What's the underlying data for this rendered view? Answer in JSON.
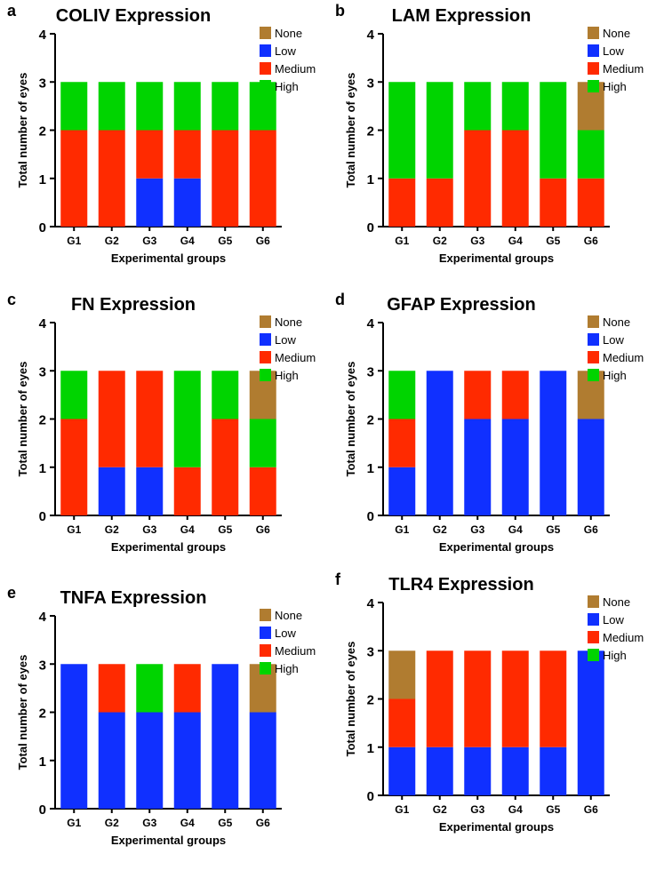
{
  "colors": {
    "None": "#b07c30",
    "Low": "#1030ff",
    "Medium": "#ff2a00",
    "High": "#00d400"
  },
  "chart_data": [
    {
      "panel": "a",
      "type": "bar",
      "stacked": true,
      "title": "COLIV Expression",
      "xlabel": "Experimental groups",
      "ylabel": "Total number of eyes",
      "ylim": [
        0,
        4
      ],
      "yticks": [
        "0",
        "1",
        "2",
        "3",
        "4"
      ],
      "categories": [
        "G1",
        "G2",
        "G3",
        "G4",
        "G5",
        "G6"
      ],
      "legend": [
        "None",
        "Low",
        "Medium",
        "High"
      ],
      "legend_position": "top-right",
      "series": [
        {
          "name": "Low",
          "values": [
            0,
            0,
            1,
            1,
            0,
            0
          ]
        },
        {
          "name": "Medium",
          "values": [
            2,
            2,
            1,
            1,
            2,
            2
          ]
        },
        {
          "name": "High",
          "values": [
            1,
            1,
            1,
            1,
            1,
            1
          ]
        },
        {
          "name": "None",
          "values": [
            0,
            0,
            0,
            0,
            0,
            0
          ]
        }
      ]
    },
    {
      "panel": "b",
      "type": "bar",
      "stacked": true,
      "title": "LAM Expression",
      "xlabel": "Experimental groups",
      "ylabel": "Total number of eyes",
      "ylim": [
        0,
        4
      ],
      "yticks": [
        "0",
        "1",
        "2",
        "3",
        "4"
      ],
      "categories": [
        "G1",
        "G2",
        "G3",
        "G4",
        "G5",
        "G6"
      ],
      "legend": [
        "None",
        "Low",
        "Medium",
        "High"
      ],
      "legend_position": "top-right",
      "series": [
        {
          "name": "Low",
          "values": [
            0,
            0,
            0,
            0,
            0,
            0
          ]
        },
        {
          "name": "Medium",
          "values": [
            1,
            1,
            2,
            2,
            1,
            1
          ]
        },
        {
          "name": "High",
          "values": [
            2,
            2,
            1,
            1,
            2,
            1
          ]
        },
        {
          "name": "None",
          "values": [
            0,
            0,
            0,
            0,
            0,
            1
          ]
        }
      ]
    },
    {
      "panel": "c",
      "type": "bar",
      "stacked": true,
      "title": "FN Expression",
      "xlabel": "Experimental groups",
      "ylabel": "Total number of eyes",
      "ylim": [
        0,
        4
      ],
      "yticks": [
        "0",
        "1",
        "2",
        "3",
        "4"
      ],
      "categories": [
        "G1",
        "G2",
        "G3",
        "G4",
        "G5",
        "G6"
      ],
      "legend": [
        "None",
        "Low",
        "Medium",
        "High"
      ],
      "legend_position": "top-right",
      "series": [
        {
          "name": "Low",
          "values": [
            0,
            1,
            1,
            0,
            0,
            0
          ]
        },
        {
          "name": "Medium",
          "values": [
            2,
            2,
            2,
            1,
            2,
            1
          ]
        },
        {
          "name": "High",
          "values": [
            1,
            0,
            0,
            2,
            1,
            1
          ]
        },
        {
          "name": "None",
          "values": [
            0,
            0,
            0,
            0,
            0,
            1
          ]
        }
      ]
    },
    {
      "panel": "d",
      "type": "bar",
      "stacked": true,
      "title": "GFAP Expression",
      "xlabel": "Experimental groups",
      "ylabel": "Total number of eyes",
      "ylim": [
        0,
        4
      ],
      "yticks": [
        "0",
        "1",
        "2",
        "3",
        "4"
      ],
      "categories": [
        "G1",
        "G2",
        "G3",
        "G4",
        "G5",
        "G6"
      ],
      "legend": [
        "None",
        "Low",
        "Medium",
        "High"
      ],
      "legend_position": "top-right",
      "series": [
        {
          "name": "Low",
          "values": [
            1,
            3,
            2,
            2,
            3,
            2
          ]
        },
        {
          "name": "Medium",
          "values": [
            1,
            0,
            1,
            1,
            0,
            0
          ]
        },
        {
          "name": "High",
          "values": [
            1,
            0,
            0,
            0,
            0,
            0
          ]
        },
        {
          "name": "None",
          "values": [
            0,
            0,
            0,
            0,
            0,
            1
          ]
        }
      ]
    },
    {
      "panel": "e",
      "type": "bar",
      "stacked": true,
      "title": "TNFA Expression",
      "xlabel": "Experimental groups",
      "ylabel": "Total number of eyes",
      "ylim": [
        0,
        4
      ],
      "yticks": [
        "0",
        "1",
        "2",
        "3",
        "4"
      ],
      "categories": [
        "G1",
        "G2",
        "G3",
        "G4",
        "G5",
        "G6"
      ],
      "legend": [
        "None",
        "Low",
        "Medium",
        "High"
      ],
      "legend_position": "top-right",
      "series": [
        {
          "name": "Low",
          "values": [
            3,
            2,
            2,
            2,
            3,
            2
          ]
        },
        {
          "name": "Medium",
          "values": [
            0,
            1,
            0,
            1,
            0,
            0
          ]
        },
        {
          "name": "High",
          "values": [
            0,
            0,
            1,
            0,
            0,
            0
          ]
        },
        {
          "name": "None",
          "values": [
            0,
            0,
            0,
            0,
            0,
            1
          ]
        }
      ]
    },
    {
      "panel": "f",
      "type": "bar",
      "stacked": true,
      "title": "TLR4 Expression",
      "xlabel": "Experimental groups",
      "ylabel": "Total number of eyes",
      "ylim": [
        0,
        4
      ],
      "yticks": [
        "0",
        "1",
        "2",
        "3",
        "4"
      ],
      "categories": [
        "G1",
        "G2",
        "G3",
        "G4",
        "G5",
        "G6"
      ],
      "legend": [
        "None",
        "Low",
        "Medium",
        "High"
      ],
      "legend_position": "top-right",
      "series": [
        {
          "name": "Low",
          "values": [
            1,
            1,
            1,
            1,
            1,
            3
          ]
        },
        {
          "name": "Medium",
          "values": [
            1,
            2,
            2,
            2,
            2,
            0
          ]
        },
        {
          "name": "High",
          "values": [
            0,
            0,
            0,
            0,
            0,
            0
          ]
        },
        {
          "name": "None",
          "values": [
            1,
            0,
            0,
            0,
            0,
            0
          ]
        }
      ]
    }
  ]
}
